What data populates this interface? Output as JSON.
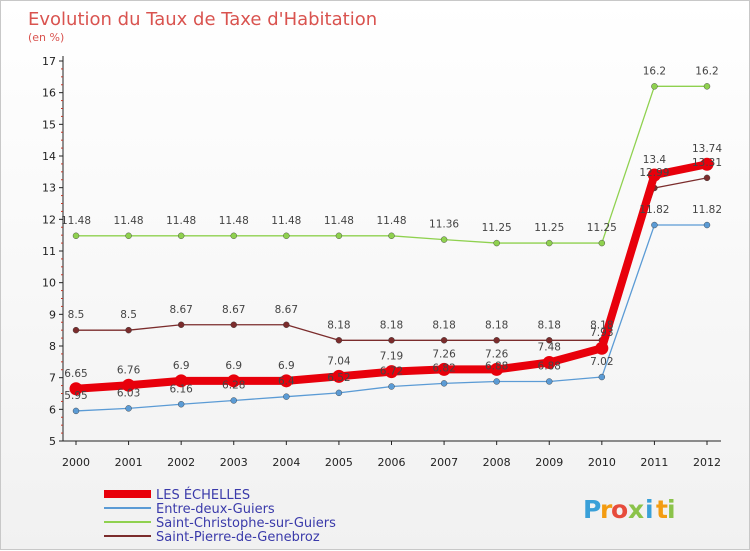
{
  "chart_data": {
    "type": "line",
    "title": "Evolution du Taux de Taxe d'Habitation",
    "subtitle": "(en %)",
    "x": [
      "2000",
      "2001",
      "2002",
      "2003",
      "2004",
      "2005",
      "2006",
      "2007",
      "2008",
      "2009",
      "2010",
      "2011",
      "2012"
    ],
    "ylim": [
      5,
      17
    ],
    "yticks": [
      5,
      6,
      7,
      8,
      9,
      10,
      11,
      12,
      13,
      14,
      15,
      16,
      17
    ],
    "grid": false,
    "legend_position": "bottom-left",
    "series": [
      {
        "name": "LES ÉCHELLES",
        "color": "#e8000b",
        "values": [
          6.65,
          6.76,
          6.9,
          6.9,
          6.9,
          7.04,
          7.19,
          7.26,
          7.26,
          7.48,
          7.93,
          13.4,
          13.74
        ]
      },
      {
        "name": "Entre-deux-Guiers",
        "color": "#5b9bd5",
        "values": [
          5.95,
          6.03,
          6.16,
          6.28,
          6.4,
          6.52,
          6.72,
          6.82,
          6.88,
          6.88,
          7.02,
          11.82,
          11.82
        ]
      },
      {
        "name": "Saint-Christophe-sur-Guiers",
        "color": "#8fd14f",
        "values": [
          11.48,
          11.48,
          11.48,
          11.48,
          11.48,
          11.48,
          11.48,
          11.36,
          11.25,
          11.25,
          11.25,
          16.2,
          16.2
        ]
      },
      {
        "name": "Saint-Pierre-de-Genebroz",
        "color": "#7b2c2c",
        "values": [
          8.5,
          8.5,
          8.67,
          8.67,
          8.67,
          8.18,
          8.18,
          8.18,
          8.18,
          8.18,
          8.18,
          12.99,
          13.31
        ]
      }
    ]
  },
  "brand": {
    "text": "Proxiti",
    "letters": [
      "P",
      "r",
      "o",
      "x",
      "i",
      "t",
      "i"
    ],
    "colors": [
      "#3aa0d8",
      "#f39c12",
      "#e74c3c",
      "#8bc34a",
      "#3aa0d8",
      "#f39c12",
      "#8bc34a"
    ]
  }
}
